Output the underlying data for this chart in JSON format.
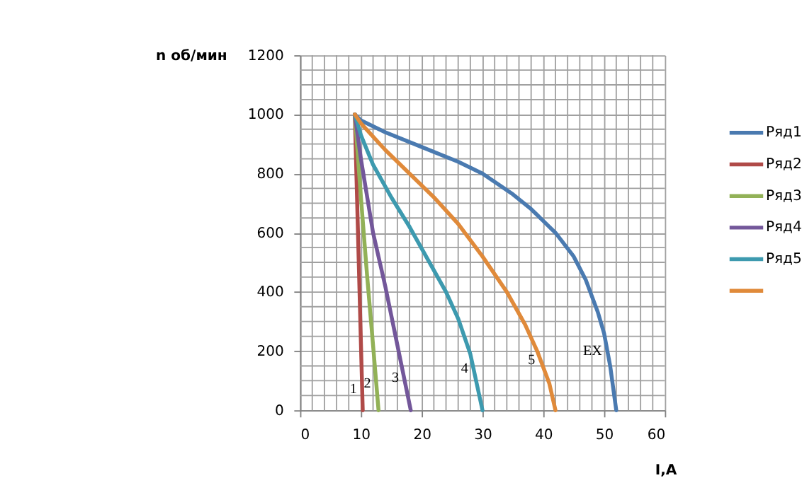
{
  "chart_data": {
    "type": "line",
    "xlabel": "I,A",
    "ylabel": "n об/мин",
    "xlim": [
      0,
      60
    ],
    "ylim": [
      0,
      1200
    ],
    "xticks": [
      0,
      {
        "value": 2,
        "label": null
      },
      {
        "value": 4,
        "label": null
      },
      {
        "value": 6,
        "label": null
      },
      {
        "value": 8,
        "label": null
      },
      10,
      {
        "value": 12,
        "label": null
      },
      {
        "value": 14,
        "label": null
      },
      {
        "value": 16,
        "label": null
      },
      {
        "value": 18,
        "label": null
      },
      20,
      {
        "value": 22,
        "label": null
      },
      {
        "value": 24,
        "label": null
      },
      {
        "value": 26,
        "label": null
      },
      {
        "value": 28,
        "label": null
      },
      30,
      {
        "value": 32,
        "label": null
      },
      {
        "value": 34,
        "label": null
      },
      {
        "value": 36,
        "label": null
      },
      {
        "value": 38,
        "label": null
      },
      40,
      {
        "value": 42,
        "label": null
      },
      {
        "value": 44,
        "label": null
      },
      {
        "value": 46,
        "label": null
      },
      {
        "value": 48,
        "label": null
      },
      50,
      {
        "value": 52,
        "label": null
      },
      {
        "value": 54,
        "label": null
      },
      {
        "value": 56,
        "label": null
      },
      {
        "value": 58,
        "label": null
      },
      60
    ],
    "yticks": [
      0,
      {
        "value": 50,
        "label": null
      },
      {
        "value": 100,
        "label": null
      },
      {
        "value": 150,
        "label": null
      },
      200,
      {
        "value": 250,
        "label": null
      },
      {
        "value": 300,
        "label": null
      },
      {
        "value": 350,
        "label": null
      },
      400,
      {
        "value": 450,
        "label": null
      },
      {
        "value": 500,
        "label": null
      },
      {
        "value": 550,
        "label": null
      },
      600,
      {
        "value": 650,
        "label": null
      },
      {
        "value": 700,
        "label": null
      },
      {
        "value": 750,
        "label": null
      },
      800,
      {
        "value": 850,
        "label": null
      },
      {
        "value": 900,
        "label": null
      },
      {
        "value": 950,
        "label": null
      },
      1000,
      {
        "value": 1050,
        "label": null
      },
      {
        "value": 1100,
        "label": null
      },
      {
        "value": 1150,
        "label": null
      },
      1200
    ],
    "grid": true,
    "legend": "right",
    "marker": "none",
    "line_style": "solid",
    "series": [
      {
        "name": "Ряд1",
        "color": "#4a7ab0",
        "x": [
          9,
          10,
          14,
          20,
          26,
          30,
          35,
          38,
          42,
          45,
          47,
          49,
          50,
          51,
          52
        ],
        "values": [
          1000,
          980,
          940,
          890,
          840,
          800,
          730,
          680,
          600,
          520,
          440,
          330,
          260,
          150,
          0
        ]
      },
      {
        "name": "Ряд2",
        "color": "#b04a48",
        "x": [
          9,
          10.3
        ],
        "values": [
          1000,
          0
        ]
      },
      {
        "name": "Ряд3",
        "color": "#92b157",
        "x": [
          9,
          10,
          11,
          12,
          12.9
        ],
        "values": [
          1000,
          720,
          460,
          220,
          0
        ]
      },
      {
        "name": "Ряд4",
        "color": "#73579a",
        "x": [
          9,
          10,
          12,
          14,
          16,
          18.2
        ],
        "values": [
          1000,
          850,
          600,
          420,
          220,
          0
        ]
      },
      {
        "name": "Ряд5",
        "color": "#3d9aaf",
        "x": [
          9,
          10,
          12,
          15,
          18,
          21,
          24,
          26,
          28,
          30
        ],
        "values": [
          1000,
          930,
          830,
          720,
          620,
          510,
          400,
          310,
          190,
          0
        ]
      },
      {
        "color": "#e08a3a",
        "x": [
          9,
          10,
          14,
          18,
          22,
          26,
          30,
          34,
          37,
          39,
          41,
          42
        ],
        "values": [
          1000,
          970,
          880,
          800,
          720,
          630,
          520,
          400,
          290,
          200,
          90,
          0
        ]
      }
    ],
    "annotations": [
      {
        "text": "1",
        "x": 10.2,
        "y": 70
      },
      {
        "text": "2",
        "x": 12.5,
        "y": 90
      },
      {
        "text": "3",
        "x": 17.1,
        "y": 110
      },
      {
        "text": "4",
        "x": 28.5,
        "y": 140
      },
      {
        "text": "5",
        "x": 39.5,
        "y": 170
      },
      {
        "text": "EX",
        "x": 50.5,
        "y": 200
      }
    ]
  }
}
